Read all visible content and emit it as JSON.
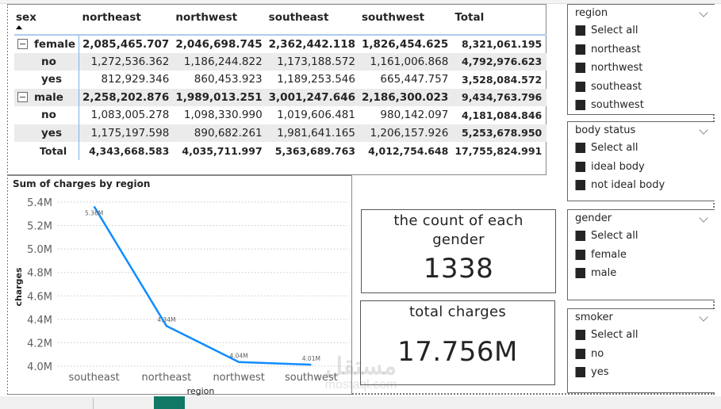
{
  "matrix": {
    "row_header": "sex",
    "columns": [
      "northeast",
      "northwest",
      "southeast",
      "southwest",
      "Total"
    ],
    "rows": [
      {
        "label": "female",
        "type": "group",
        "values": [
          "2,085,465.707",
          "2,046,698.745",
          "2,362,442.118",
          "1,826,454.625",
          "8,321,061.195"
        ]
      },
      {
        "label": "no",
        "type": "child",
        "values": [
          "1,272,536.362",
          "1,186,244.822",
          "1,173,188.572",
          "1,161,006.868",
          "4,792,976.623"
        ]
      },
      {
        "label": "yes",
        "type": "child",
        "values": [
          "812,929.346",
          "860,453.923",
          "1,189,253.546",
          "665,447.757",
          "3,528,084.572"
        ]
      },
      {
        "label": "male",
        "type": "group",
        "values": [
          "2,258,202.876",
          "1,989,013.251",
          "3,001,247.646",
          "2,186,300.023",
          "9,434,763.796"
        ]
      },
      {
        "label": "no",
        "type": "child",
        "values": [
          "1,083,005.278",
          "1,098,330.990",
          "1,019,606.481",
          "980,142.097",
          "4,181,084.846"
        ]
      },
      {
        "label": "yes",
        "type": "child",
        "values": [
          "1,175,197.598",
          "890,682.261",
          "1,981,641.165",
          "1,206,157.926",
          "5,253,678.950"
        ]
      },
      {
        "label": "Total",
        "type": "total",
        "values": [
          "4,343,668.583",
          "4,035,711.997",
          "5,363,689.763",
          "4,012,754.648",
          "17,755,824.991"
        ]
      }
    ]
  },
  "chart_data": {
    "type": "line",
    "title": "Sum of charges by region",
    "xlabel": "region",
    "ylabel": "charges",
    "categories": [
      "southeast",
      "northeast",
      "northwest",
      "southwest"
    ],
    "values": [
      5363689.763,
      4343668.583,
      4035711.997,
      4012754.648
    ],
    "data_labels": [
      "5.36M",
      "4.34M",
      "4.04M",
      "4.01M"
    ],
    "y_ticks": [
      "4.0M",
      "4.2M",
      "4.4M",
      "4.6M",
      "4.8M",
      "5.0M",
      "5.2M",
      "5.4M"
    ],
    "ylim": [
      4000000,
      5400000
    ],
    "grid": true,
    "line_color": "#118DFF"
  },
  "cards": [
    {
      "label": "the count of each gender",
      "value": "1338"
    },
    {
      "label": "total charges",
      "value": "17.756M"
    }
  ],
  "slicers": [
    {
      "title": "region",
      "items": [
        "Select all",
        "northeast",
        "northwest",
        "southeast",
        "southwest"
      ]
    },
    {
      "title": "body status",
      "items": [
        "Select all",
        "ideal body",
        "not ideal body"
      ]
    },
    {
      "title": "gender",
      "items": [
        "Select all",
        "female",
        "male"
      ]
    },
    {
      "title": "smoker",
      "items": [
        "Select all",
        "no",
        "yes"
      ]
    }
  ],
  "watermark": {
    "line1": "مستقل",
    "line2": "mostaql.com"
  }
}
